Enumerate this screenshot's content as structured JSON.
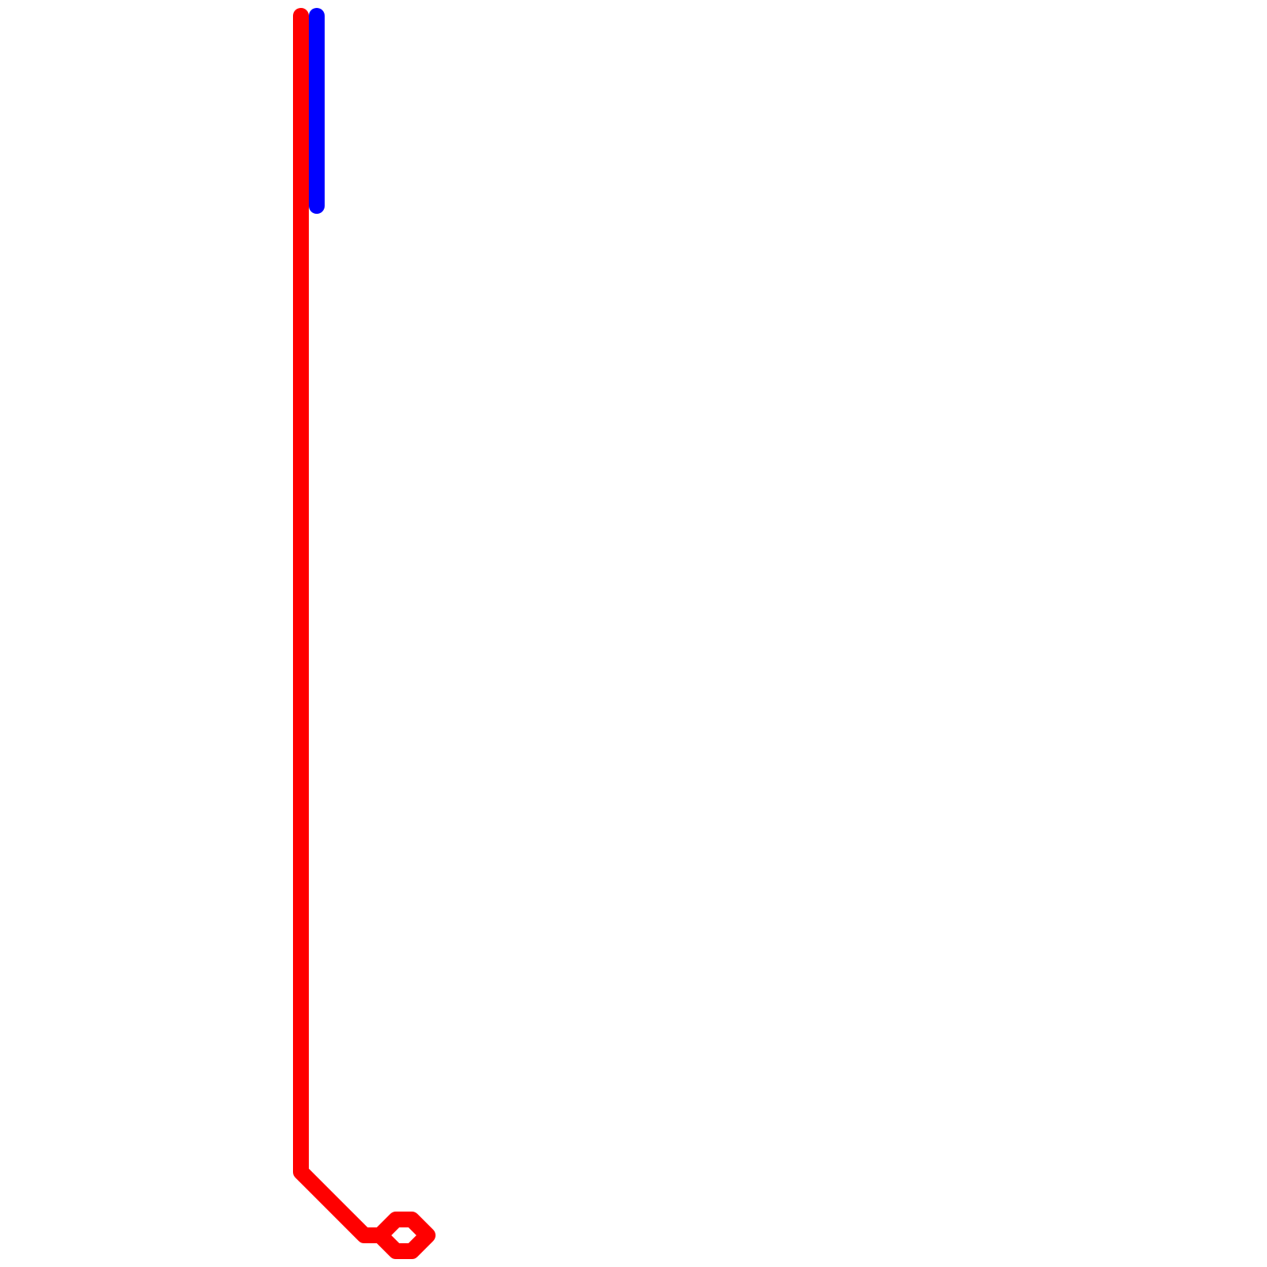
{
  "background_color": "#ffffff",
  "paths": [
    {
      "name": "red-path",
      "color": "#ff0000",
      "description_shape": "long vertical line with diagonal tail ending in a small hexagonal loop"
    },
    {
      "name": "blue-path",
      "color": "#0000ff",
      "description_shape": "short vertical line"
    }
  ]
}
